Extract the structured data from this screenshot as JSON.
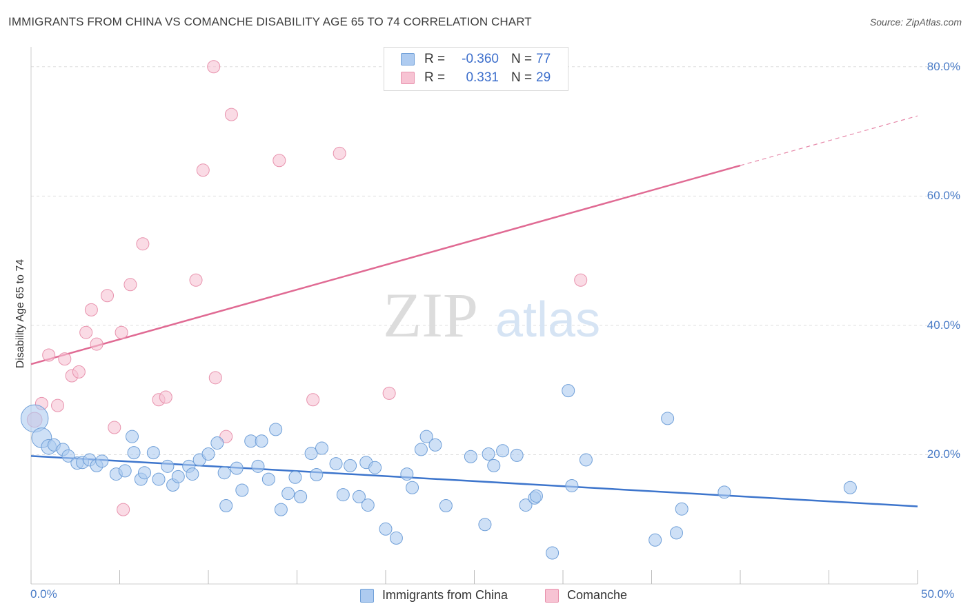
{
  "title": "IMMIGRANTS FROM CHINA VS COMANCHE DISABILITY AGE 65 TO 74 CORRELATION CHART",
  "source": "Source: ZipAtlas.com",
  "watermark": {
    "zip": "ZIP",
    "atlas": "atlas"
  },
  "legend_top": {
    "rows": [
      {
        "r_label": "R =",
        "r_value": "-0.360",
        "n_label": "N =",
        "n_value": "77"
      },
      {
        "r_label": "R =",
        "r_value": "0.331",
        "n_label": "N =",
        "n_value": "29"
      }
    ]
  },
  "legend_bottom": [
    "Immigrants from China",
    "Comanche"
  ],
  "colors": {
    "china_fill": "#aecbf0",
    "china_stroke": "#6f9fd8",
    "china_line": "#3d75cc",
    "comanche_fill": "#f7c3d3",
    "comanche_stroke": "#e892ad",
    "comanche_line": "#e06a93",
    "tick_text": "#4a7cc7",
    "grid": "#dddddd"
  },
  "chart_data": {
    "type": "scatter",
    "title": "IMMIGRANTS FROM CHINA VS COMANCHE DISABILITY AGE 65 TO 74 CORRELATION CHART",
    "xlabel": "",
    "ylabel": "Disability Age 65 to 74",
    "xlim": [
      0,
      50
    ],
    "ylim": [
      0,
      82
    ],
    "x_tick_labels": [
      "0.0%",
      "50.0%"
    ],
    "y_ticks": [
      20,
      40,
      60,
      80
    ],
    "y_tick_labels": [
      "20.0%",
      "40.0%",
      "60.0%",
      "80.0%"
    ],
    "grid": true,
    "legend_position": "top-center",
    "series": [
      {
        "name": "Immigrants from China",
        "R": -0.36,
        "N": 77,
        "trend": {
          "x": [
            0,
            50
          ],
          "y": [
            19.8,
            12.0
          ],
          "dashed_after": null
        },
        "points": [
          [
            0.2,
            25.6,
            2.2
          ],
          [
            0.6,
            22.6,
            1.6
          ],
          [
            1.0,
            21.2,
            1.2
          ],
          [
            1.3,
            21.5,
            1.0
          ],
          [
            1.8,
            20.8,
            1.0
          ],
          [
            2.1,
            19.8,
            1.0
          ],
          [
            2.6,
            18.7,
            1.0
          ],
          [
            2.9,
            18.8,
            1.0
          ],
          [
            3.3,
            19.2,
            1.0
          ],
          [
            3.7,
            18.3,
            1.0
          ],
          [
            4.0,
            19.0,
            1.0
          ],
          [
            4.8,
            17.0,
            1.0
          ],
          [
            5.3,
            17.5,
            1.0
          ],
          [
            5.7,
            22.8,
            1.0
          ],
          [
            5.8,
            20.3,
            1.0
          ],
          [
            6.2,
            16.2,
            1.0
          ],
          [
            6.4,
            17.2,
            1.0
          ],
          [
            6.9,
            20.3,
            1.0
          ],
          [
            7.2,
            16.2,
            1.0
          ],
          [
            7.7,
            18.2,
            1.0
          ],
          [
            8.0,
            15.3,
            1.0
          ],
          [
            8.3,
            16.6,
            1.0
          ],
          [
            8.9,
            18.2,
            1.0
          ],
          [
            9.1,
            17.0,
            1.0
          ],
          [
            9.5,
            19.2,
            1.0
          ],
          [
            10.0,
            20.1,
            1.0
          ],
          [
            10.5,
            21.8,
            1.0
          ],
          [
            10.9,
            17.2,
            1.0
          ],
          [
            11.0,
            12.1,
            1.0
          ],
          [
            11.6,
            17.9,
            1.0
          ],
          [
            11.9,
            14.5,
            1.0
          ],
          [
            12.4,
            22.1,
            1.0
          ],
          [
            12.8,
            18.2,
            1.0
          ],
          [
            13.0,
            22.1,
            1.0
          ],
          [
            13.4,
            16.2,
            1.0
          ],
          [
            13.8,
            23.9,
            1.0
          ],
          [
            14.1,
            11.5,
            1.0
          ],
          [
            14.5,
            14.0,
            1.0
          ],
          [
            14.9,
            16.5,
            1.0
          ],
          [
            15.2,
            13.5,
            1.0
          ],
          [
            15.8,
            20.2,
            1.0
          ],
          [
            16.1,
            16.9,
            1.0
          ],
          [
            16.4,
            21.0,
            1.0
          ],
          [
            17.2,
            18.6,
            1.0
          ],
          [
            17.6,
            13.8,
            1.0
          ],
          [
            18.0,
            18.3,
            1.0
          ],
          [
            18.5,
            13.5,
            1.0
          ],
          [
            18.9,
            18.8,
            1.0
          ],
          [
            19.0,
            12.2,
            1.0
          ],
          [
            19.4,
            18.0,
            1.0
          ],
          [
            20.0,
            8.5,
            1.0
          ],
          [
            20.6,
            7.1,
            1.0
          ],
          [
            21.2,
            17.0,
            1.0
          ],
          [
            21.5,
            14.9,
            1.0
          ],
          [
            22.0,
            20.8,
            1.0
          ],
          [
            22.3,
            22.8,
            1.0
          ],
          [
            22.8,
            21.5,
            1.0
          ],
          [
            23.4,
            12.1,
            1.0
          ],
          [
            24.8,
            19.7,
            1.0
          ],
          [
            25.6,
            9.2,
            1.0
          ],
          [
            25.8,
            20.1,
            1.0
          ],
          [
            26.1,
            18.3,
            1.0
          ],
          [
            26.6,
            20.6,
            1.0
          ],
          [
            27.4,
            19.9,
            1.0
          ],
          [
            27.9,
            12.2,
            1.0
          ],
          [
            28.4,
            13.3,
            1.0
          ],
          [
            28.5,
            13.6,
            1.0
          ],
          [
            29.4,
            4.8,
            1.0
          ],
          [
            30.3,
            29.9,
            1.0
          ],
          [
            30.5,
            15.2,
            1.0
          ],
          [
            31.3,
            19.2,
            1.0
          ],
          [
            35.2,
            6.8,
            1.0
          ],
          [
            35.9,
            25.6,
            1.0
          ],
          [
            36.4,
            7.9,
            1.0
          ],
          [
            36.7,
            11.6,
            1.0
          ],
          [
            39.1,
            14.2,
            1.0
          ],
          [
            46.2,
            14.9,
            1.0
          ]
        ]
      },
      {
        "name": "Comanche",
        "R": 0.331,
        "N": 29,
        "trend": {
          "x": [
            0,
            50
          ],
          "y": [
            34.0,
            72.4
          ],
          "dashed_after": 40.0
        },
        "points": [
          [
            0.2,
            25.4,
            1.2
          ],
          [
            0.6,
            27.9,
            1.0
          ],
          [
            1.0,
            35.4,
            1.0
          ],
          [
            1.5,
            27.6,
            1.0
          ],
          [
            1.9,
            34.8,
            1.0
          ],
          [
            2.3,
            32.2,
            1.0
          ],
          [
            2.7,
            32.8,
            1.0
          ],
          [
            3.1,
            38.9,
            1.0
          ],
          [
            3.4,
            42.4,
            1.0
          ],
          [
            3.7,
            37.1,
            1.0
          ],
          [
            4.3,
            44.6,
            1.0
          ],
          [
            4.7,
            24.2,
            1.0
          ],
          [
            5.1,
            38.9,
            1.0
          ],
          [
            5.2,
            11.5,
            1.0
          ],
          [
            5.6,
            46.3,
            1.0
          ],
          [
            6.3,
            52.6,
            1.0
          ],
          [
            7.2,
            28.5,
            1.0
          ],
          [
            7.6,
            28.9,
            1.0
          ],
          [
            9.3,
            47.0,
            1.0
          ],
          [
            9.7,
            64.0,
            1.0
          ],
          [
            10.3,
            80.0,
            1.0
          ],
          [
            10.4,
            31.9,
            1.0
          ],
          [
            11.0,
            22.8,
            1.0
          ],
          [
            11.3,
            72.6,
            1.0
          ],
          [
            14.0,
            65.5,
            1.0
          ],
          [
            15.9,
            28.5,
            1.0
          ],
          [
            17.4,
            66.6,
            1.0
          ],
          [
            20.2,
            29.5,
            1.0
          ],
          [
            31.0,
            47.0,
            1.0
          ]
        ]
      }
    ]
  }
}
